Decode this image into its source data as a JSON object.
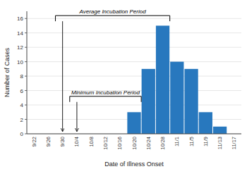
{
  "chart_data": {
    "type": "bar",
    "categories": [
      "9/22",
      "9/26",
      "9/30",
      "10/4",
      "10/8",
      "10/12",
      "10/16",
      "10/20",
      "10/24",
      "10/28",
      "11/1",
      "11/5",
      "11/9",
      "11/13",
      "11/17"
    ],
    "values": [
      0,
      0,
      0,
      0,
      0,
      0,
      0,
      3,
      9,
      15,
      10,
      9,
      3,
      1,
      0
    ],
    "color": "#2878BE",
    "xlabel": "Date of Illness Onset",
    "ylabel": "Number of Cases",
    "ylim": [
      0,
      17
    ],
    "yticks": [
      0,
      2,
      4,
      6,
      8,
      10,
      12,
      14,
      16
    ],
    "annotations": [
      {
        "text": "Average Incubation Period",
        "from": "9/30",
        "to": "10/28",
        "y": 16.4,
        "arrow_y": 0.35
      },
      {
        "text": "Minimum Incubation Period",
        "from": "10/4",
        "to": "10/20",
        "y": 5.2,
        "arrow_y": 0.35
      }
    ]
  }
}
